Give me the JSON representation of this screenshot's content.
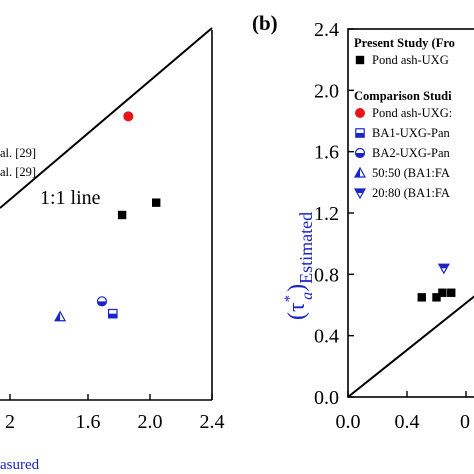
{
  "chart_data": [
    {
      "panel": "a",
      "type": "scatter",
      "xlabel": "asured",
      "ylabel": "",
      "xlim": [
        1.2,
        2.4
      ],
      "ylim": [
        1.2,
        2.4
      ],
      "x_ticks": [
        "2",
        "1.6",
        "2.0",
        "2.4"
      ],
      "one_to_one_label": "1:1 line",
      "ref_labels": [
        "al. [29]",
        "al. [29]"
      ],
      "series": [
        {
          "marker": "square",
          "color": "#000000",
          "points": [
            [
              1.82,
              1.8
            ],
            [
              2.04,
              1.84
            ]
          ]
        },
        {
          "marker": "circle",
          "color": "#e8141c",
          "points": [
            [
              1.86,
              2.12
            ]
          ]
        },
        {
          "marker": "half-circle",
          "color": "#1a24c8",
          "points": [
            [
              1.69,
              1.52
            ]
          ]
        },
        {
          "marker": "half-square",
          "color": "#1a24c8",
          "points": [
            [
              1.76,
              1.48
            ]
          ]
        },
        {
          "marker": "half-triangle-up",
          "color": "#1a24c8",
          "points": [
            [
              1.42,
              1.47
            ]
          ]
        }
      ]
    },
    {
      "panel": "b",
      "type": "scatter",
      "xlabel": "",
      "ylabel_main": "(τ",
      "ylabel_sup": "*",
      "ylabel_sub": "a",
      "ylabel_close": ")",
      "ylabel_subscript": "Estimated",
      "xlim": [
        0.0,
        2.4
      ],
      "ylim": [
        0.0,
        2.4
      ],
      "y_ticks": [
        "0.0",
        "0.4",
        "0.8",
        "1.2",
        "1.6",
        "2.0",
        "2.4"
      ],
      "x_ticks": [
        "0.0",
        "0.4",
        "0"
      ],
      "legend_title_1": "Present Study (Fro",
      "legend_title_2": "Comparison Studi",
      "legend": [
        {
          "marker": "square",
          "color": "#000000",
          "label": "Pond ash-UXG"
        },
        {
          "marker": "circle",
          "color": "#e8141c",
          "label": "Pond ash-UXG:"
        },
        {
          "marker": "half-square",
          "color": "#1a24c8",
          "label": "BA1-UXG-Pan"
        },
        {
          "marker": "half-circle",
          "color": "#1a24c8",
          "label": "BA2-UXG-Pan"
        },
        {
          "marker": "half-triangle-up",
          "color": "#1a24c8",
          "label": "50:50 (BA1:FA"
        },
        {
          "marker": "half-triangle-down",
          "color": "#1a24c8",
          "label": "20:80 (BA1:FA"
        }
      ],
      "series": [
        {
          "marker": "square",
          "color": "#000000",
          "points": [
            [
              0.5,
              0.65
            ],
            [
              0.6,
              0.65
            ],
            [
              0.64,
              0.68
            ],
            [
              0.7,
              0.68
            ]
          ]
        },
        {
          "marker": "half-triangle-down",
          "color": "#1a24c8",
          "points": [
            [
              0.65,
              0.84
            ]
          ]
        }
      ]
    }
  ],
  "panel_label_b": "(b)"
}
